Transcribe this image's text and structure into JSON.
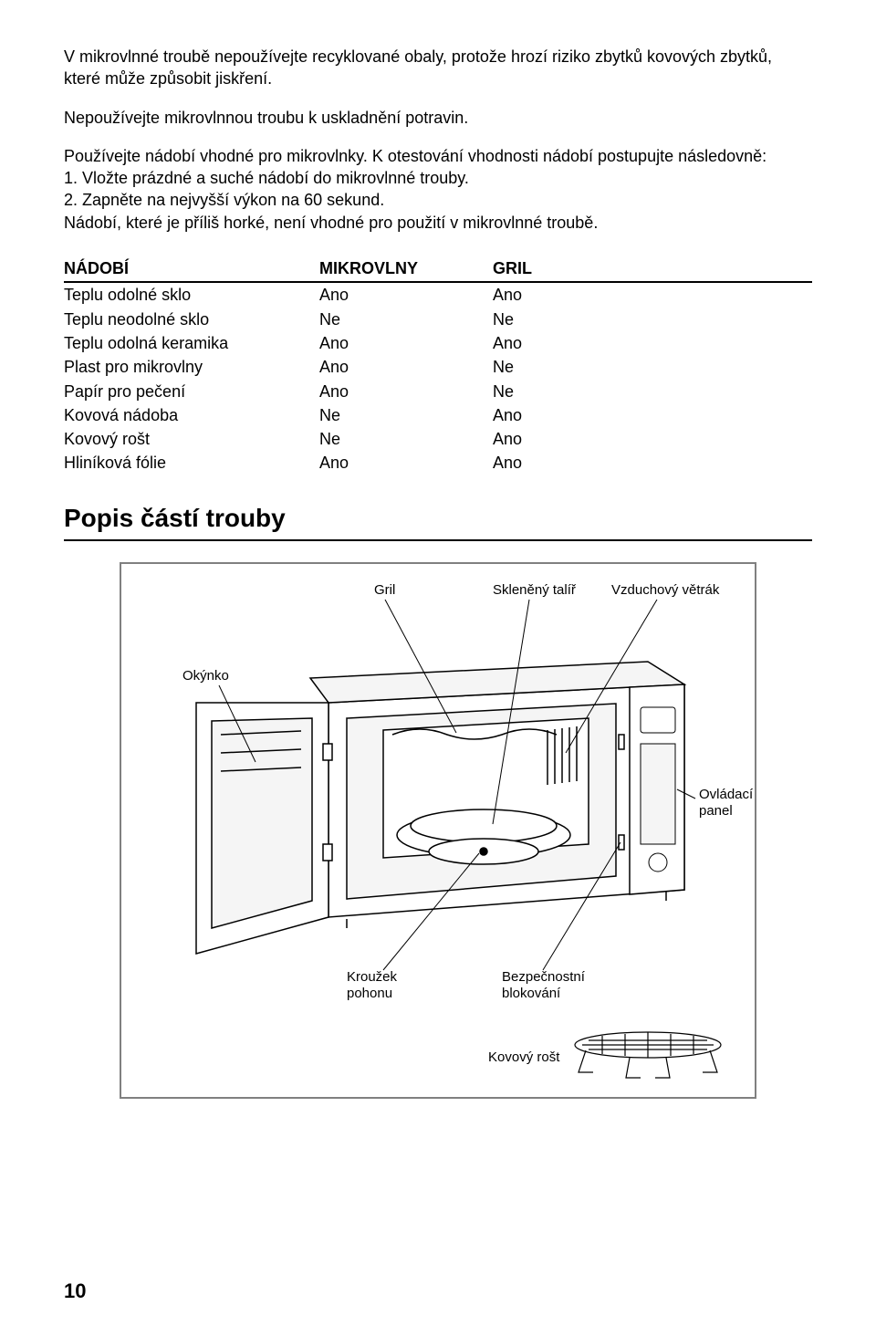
{
  "paragraphs": {
    "p1": "V mikrovlnné troubě nepoužívejte recyklované obaly, protože hrozí riziko zbytků kovových zbytků, které může způsobit jiskření.",
    "p2": "Nepoužívejte mikrovlnnou troubu k uskladnění potravin.",
    "p3a": "Používejte nádobí vhodné pro mikrovlnky. K otestování vhodnosti nádobí postupujte následovně:",
    "p3b": "1. Vložte prázdné a suché nádobí do mikrovlnné trouby.",
    "p3c": "2. Zapněte na nejvyšší výkon na 60 sekund.",
    "p3d": "Nádobí, které je příliš horké, není vhodné pro použití v mikrovlnné troubě."
  },
  "table": {
    "headers": {
      "c1": "NÁDOBÍ",
      "c2": "MIKROVLNY",
      "c3": "GRIL"
    },
    "rows": [
      {
        "c1": "Teplu odolné sklo",
        "c2": "Ano",
        "c3": "Ano"
      },
      {
        "c1": "Teplu neodolné sklo",
        "c2": "Ne",
        "c3": "Ne"
      },
      {
        "c1": "Teplu odolná keramika",
        "c2": "Ano",
        "c3": "Ano"
      },
      {
        "c1": "Plast pro mikrovlny",
        "c2": "Ano",
        "c3": "Ne"
      },
      {
        "c1": "Papír pro pečení",
        "c2": "Ano",
        "c3": "Ne"
      },
      {
        "c1": "Kovová nádoba",
        "c2": "Ne",
        "c3": "Ano"
      },
      {
        "c1": "Kovový rošt",
        "c2": "Ne",
        "c3": "Ano"
      },
      {
        "c1": "Hliníková fólie",
        "c2": "Ano",
        "c3": "Ano"
      }
    ]
  },
  "section_title": "Popis částí trouby",
  "diagram": {
    "labels": {
      "gril": "Gril",
      "talir": "Skleněný talíř",
      "vetrak": "Vzduchový větrák",
      "okynko": "Okýnko",
      "panel1": "Ovládací",
      "panel2": "panel",
      "krouzek1": "Kroužek",
      "krouzek2": "pohonu",
      "blok1": "Bezpečnostní",
      "blok2": "blokování",
      "rost": "Kovový rošt"
    },
    "colors": {
      "frame_border": "#808080",
      "frame_fill": "#ffffff",
      "stroke": "#000000",
      "light_fill": "#f5f5f5",
      "text": "#000000"
    },
    "font_size_label": 15
  },
  "page_number": "10"
}
